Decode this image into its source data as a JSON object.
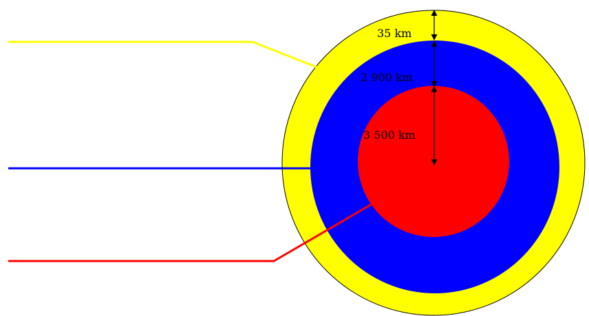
{
  "diagram": {
    "layers": [
      {
        "id": "crust",
        "color": "#ffff00",
        "thickness_label": "35 km"
      },
      {
        "id": "mantle",
        "color": "#0000ff",
        "thickness_label": "2 900 km"
      },
      {
        "id": "core",
        "color": "#ff0000",
        "thickness_label": "3 500 km"
      }
    ],
    "outline_color": "#000000"
  }
}
